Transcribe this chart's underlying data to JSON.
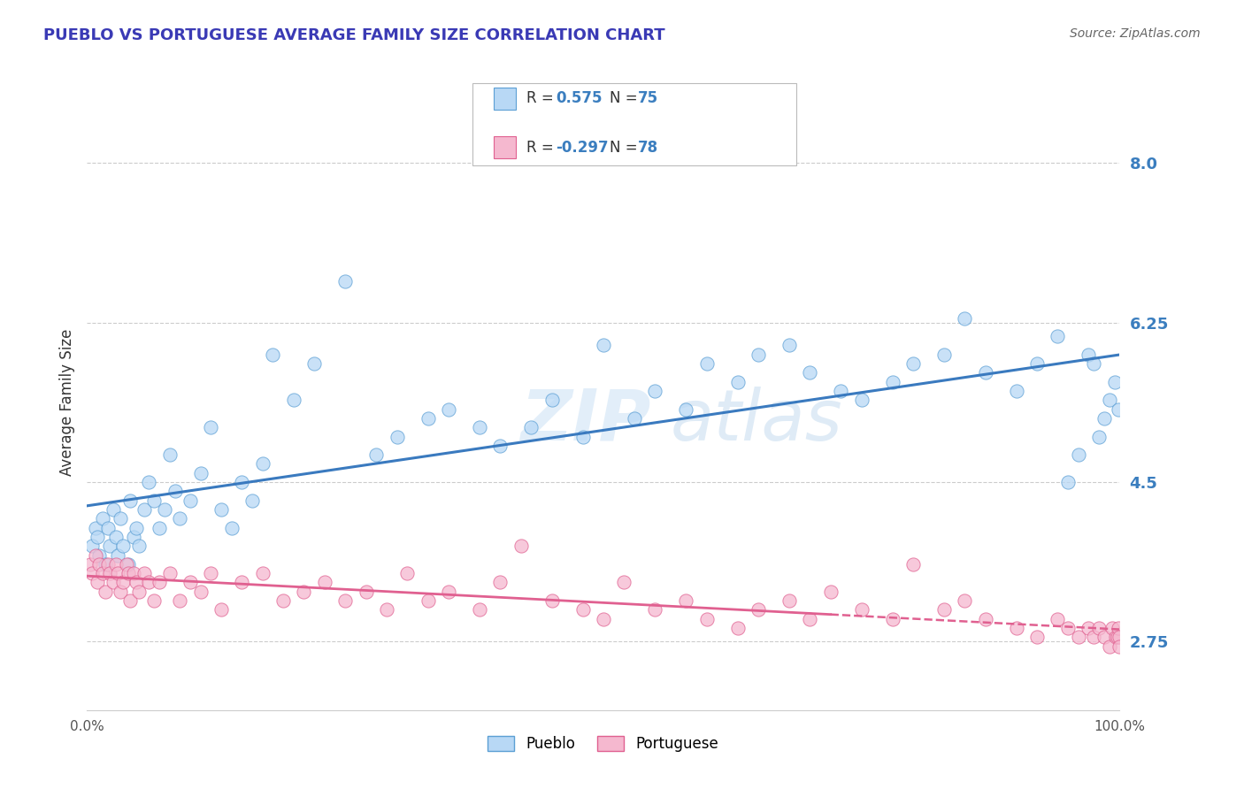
{
  "title": "PUEBLO VS PORTUGUESE AVERAGE FAMILY SIZE CORRELATION CHART",
  "source": "Source: ZipAtlas.com",
  "ylabel": "Average Family Size",
  "xlim": [
    0,
    1
  ],
  "ylim": [
    2.0,
    8.75
  ],
  "yticks": [
    2.75,
    4.5,
    6.25,
    8.0
  ],
  "xtick_labels": [
    "0.0%",
    "100.0%"
  ],
  "title_color": "#3a3ab5",
  "title_fontsize": 13,
  "source_color": "#666666",
  "ytick_color": "#3b7ebf",
  "background_color": "#ffffff",
  "grid_color": "#cccccc",
  "pueblo_color": "#b8d8f5",
  "portuguese_color": "#f5b8cf",
  "pueblo_edge_color": "#5b9fd4",
  "portuguese_edge_color": "#e06090",
  "pueblo_line_color": "#3a7abf",
  "portuguese_line_color": "#e06090",
  "pueblo_R": 0.575,
  "pueblo_N": 75,
  "portuguese_R": -0.297,
  "portuguese_N": 78,
  "legend_label_pueblo": "Pueblo",
  "legend_label_portuguese": "Portuguese",
  "pueblo_scatter_x": [
    0.005,
    0.008,
    0.01,
    0.012,
    0.015,
    0.018,
    0.02,
    0.022,
    0.025,
    0.028,
    0.03,
    0.032,
    0.035,
    0.04,
    0.042,
    0.045,
    0.048,
    0.05,
    0.055,
    0.06,
    0.065,
    0.07,
    0.075,
    0.08,
    0.085,
    0.09,
    0.1,
    0.11,
    0.12,
    0.13,
    0.14,
    0.15,
    0.16,
    0.17,
    0.18,
    0.2,
    0.22,
    0.25,
    0.28,
    0.3,
    0.33,
    0.35,
    0.38,
    0.4,
    0.43,
    0.45,
    0.48,
    0.5,
    0.53,
    0.55,
    0.58,
    0.6,
    0.63,
    0.65,
    0.68,
    0.7,
    0.73,
    0.75,
    0.78,
    0.8,
    0.83,
    0.85,
    0.87,
    0.9,
    0.92,
    0.94,
    0.95,
    0.96,
    0.97,
    0.975,
    0.98,
    0.985,
    0.99,
    0.995,
    0.999
  ],
  "pueblo_scatter_y": [
    3.8,
    4.0,
    3.9,
    3.7,
    4.1,
    3.6,
    4.0,
    3.8,
    4.2,
    3.9,
    3.7,
    4.1,
    3.8,
    3.6,
    4.3,
    3.9,
    4.0,
    3.8,
    4.2,
    4.5,
    4.3,
    4.0,
    4.2,
    4.8,
    4.4,
    4.1,
    4.3,
    4.6,
    5.1,
    4.2,
    4.0,
    4.5,
    4.3,
    4.7,
    5.9,
    5.4,
    5.8,
    6.7,
    4.8,
    5.0,
    5.2,
    5.3,
    5.1,
    4.9,
    5.1,
    5.4,
    5.0,
    6.0,
    5.2,
    5.5,
    5.3,
    5.8,
    5.6,
    5.9,
    6.0,
    5.7,
    5.5,
    5.4,
    5.6,
    5.8,
    5.9,
    6.3,
    5.7,
    5.5,
    5.8,
    6.1,
    4.5,
    4.8,
    5.9,
    5.8,
    5.0,
    5.2,
    5.4,
    5.6,
    5.3
  ],
  "portuguese_scatter_x": [
    0.003,
    0.005,
    0.008,
    0.01,
    0.012,
    0.015,
    0.018,
    0.02,
    0.022,
    0.025,
    0.028,
    0.03,
    0.032,
    0.035,
    0.038,
    0.04,
    0.042,
    0.045,
    0.048,
    0.05,
    0.055,
    0.06,
    0.065,
    0.07,
    0.08,
    0.09,
    0.1,
    0.11,
    0.12,
    0.13,
    0.15,
    0.17,
    0.19,
    0.21,
    0.23,
    0.25,
    0.27,
    0.29,
    0.31,
    0.33,
    0.35,
    0.38,
    0.4,
    0.42,
    0.45,
    0.48,
    0.5,
    0.52,
    0.55,
    0.58,
    0.6,
    0.63,
    0.65,
    0.68,
    0.7,
    0.72,
    0.75,
    0.78,
    0.8,
    0.83,
    0.85,
    0.87,
    0.9,
    0.92,
    0.94,
    0.95,
    0.96,
    0.97,
    0.975,
    0.98,
    0.985,
    0.99,
    0.993,
    0.996,
    0.998,
    0.999,
    0.9995,
    0.9999
  ],
  "portuguese_scatter_y": [
    3.6,
    3.5,
    3.7,
    3.4,
    3.6,
    3.5,
    3.3,
    3.6,
    3.5,
    3.4,
    3.6,
    3.5,
    3.3,
    3.4,
    3.6,
    3.5,
    3.2,
    3.5,
    3.4,
    3.3,
    3.5,
    3.4,
    3.2,
    3.4,
    3.5,
    3.2,
    3.4,
    3.3,
    3.5,
    3.1,
    3.4,
    3.5,
    3.2,
    3.3,
    3.4,
    3.2,
    3.3,
    3.1,
    3.5,
    3.2,
    3.3,
    3.1,
    3.4,
    3.8,
    3.2,
    3.1,
    3.0,
    3.4,
    3.1,
    3.2,
    3.0,
    2.9,
    3.1,
    3.2,
    3.0,
    3.3,
    3.1,
    3.0,
    3.6,
    3.1,
    3.2,
    3.0,
    2.9,
    2.8,
    3.0,
    2.9,
    2.8,
    2.9,
    2.8,
    2.9,
    2.8,
    2.7,
    2.9,
    2.8,
    2.8,
    2.9,
    2.8,
    2.7
  ]
}
